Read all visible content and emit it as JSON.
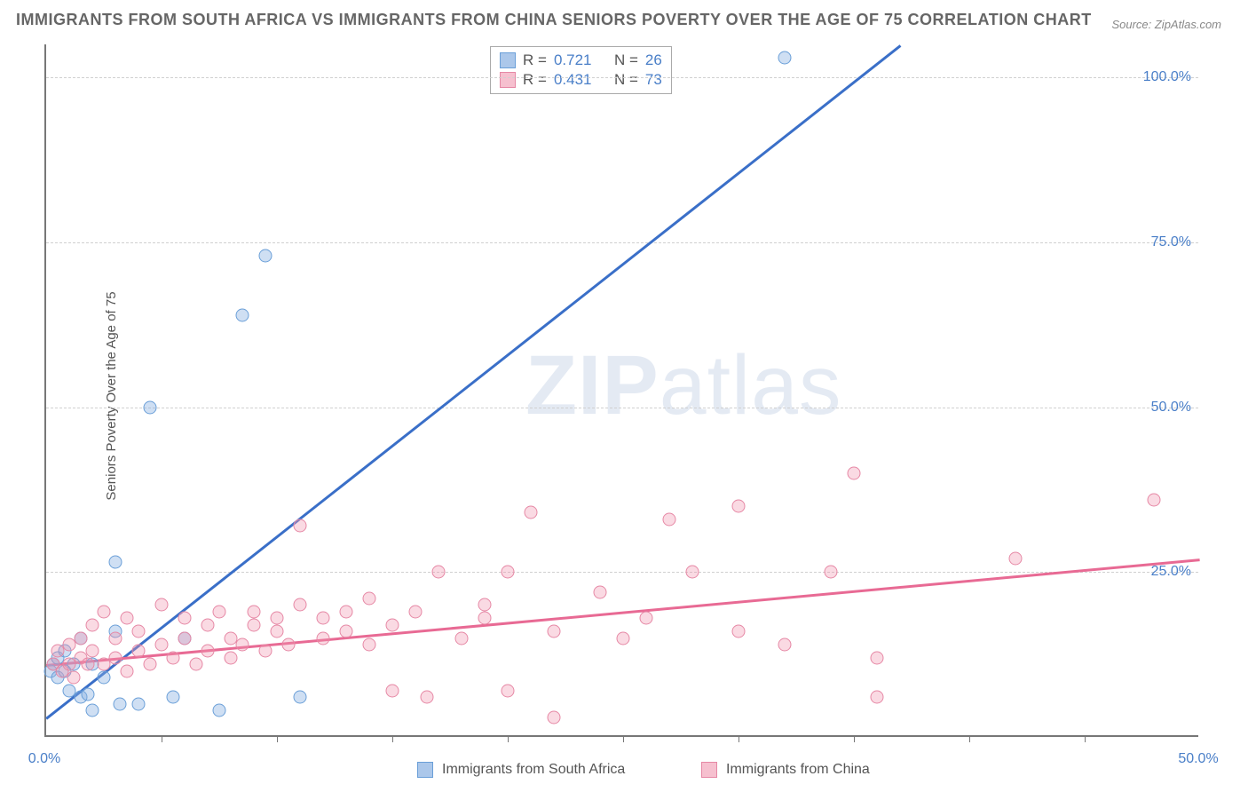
{
  "title": "IMMIGRANTS FROM SOUTH AFRICA VS IMMIGRANTS FROM CHINA SENIORS POVERTY OVER THE AGE OF 75 CORRELATION CHART",
  "source": "Source: ZipAtlas.com",
  "y_axis_label": "Seniors Poverty Over the Age of 75",
  "watermark_bold": "ZIP",
  "watermark_rest": "atlas",
  "chart": {
    "type": "scatter",
    "xlim": [
      0,
      50
    ],
    "ylim": [
      0,
      105
    ],
    "x_ticks": [
      0,
      25,
      50
    ],
    "x_tick_labels": [
      "0.0%",
      "",
      "50.0%"
    ],
    "y_ticks": [
      25,
      50,
      75,
      100
    ],
    "y_tick_labels": [
      "25.0%",
      "50.0%",
      "75.0%",
      "100.0%"
    ],
    "minor_x_ticks": [
      5,
      10,
      15,
      20,
      25,
      30,
      35,
      40,
      45
    ],
    "series": [
      {
        "name": "Immigrants from South Africa",
        "color_fill": "rgba(135,175,225,0.4)",
        "color_stroke": "#6a9fd8",
        "line_color": "#3a6fc8",
        "R": "0.721",
        "N": "26",
        "trend": {
          "x1": 0,
          "y1": 3,
          "x2": 37,
          "y2": 105
        },
        "points": [
          [
            0.2,
            10
          ],
          [
            0.3,
            11
          ],
          [
            0.5,
            9
          ],
          [
            0.5,
            12
          ],
          [
            0.8,
            10
          ],
          [
            0.8,
            13
          ],
          [
            1.0,
            7
          ],
          [
            1.2,
            11
          ],
          [
            1.5,
            6
          ],
          [
            1.5,
            15
          ],
          [
            1.8,
            6.5
          ],
          [
            2.0,
            4
          ],
          [
            2.0,
            11
          ],
          [
            2.5,
            9
          ],
          [
            3.0,
            16
          ],
          [
            3.0,
            26.5
          ],
          [
            3.2,
            5
          ],
          [
            4.0,
            5
          ],
          [
            4.5,
            50
          ],
          [
            5.5,
            6
          ],
          [
            6.0,
            15
          ],
          [
            7.5,
            4
          ],
          [
            8.5,
            64
          ],
          [
            9.5,
            73
          ],
          [
            11,
            6
          ],
          [
            32,
            103
          ]
        ]
      },
      {
        "name": "Immigrants from China",
        "color_fill": "rgba(240,150,175,0.35)",
        "color_stroke": "#e688a5",
        "line_color": "#e86a94",
        "R": "0.431",
        "N": "73",
        "trend": {
          "x1": 0,
          "y1": 11,
          "x2": 50,
          "y2": 27
        },
        "points": [
          [
            0.3,
            11
          ],
          [
            0.5,
            13
          ],
          [
            0.7,
            10
          ],
          [
            1.0,
            11
          ],
          [
            1.0,
            14
          ],
          [
            1.2,
            9
          ],
          [
            1.5,
            12
          ],
          [
            1.5,
            15
          ],
          [
            1.8,
            11
          ],
          [
            2.0,
            13
          ],
          [
            2.0,
            17
          ],
          [
            2.5,
            11
          ],
          [
            2.5,
            19
          ],
          [
            3.0,
            12
          ],
          [
            3.0,
            15
          ],
          [
            3.5,
            10
          ],
          [
            3.5,
            18
          ],
          [
            4.0,
            13
          ],
          [
            4.0,
            16
          ],
          [
            4.5,
            11
          ],
          [
            5.0,
            14
          ],
          [
            5.0,
            20
          ],
          [
            5.5,
            12
          ],
          [
            6.0,
            15
          ],
          [
            6.0,
            18
          ],
          [
            6.5,
            11
          ],
          [
            7.0,
            13
          ],
          [
            7.0,
            17
          ],
          [
            7.5,
            19
          ],
          [
            8.0,
            12
          ],
          [
            8.0,
            15
          ],
          [
            8.5,
            14
          ],
          [
            9.0,
            17
          ],
          [
            9.0,
            19
          ],
          [
            9.5,
            13
          ],
          [
            10,
            16
          ],
          [
            10,
            18
          ],
          [
            10.5,
            14
          ],
          [
            11,
            20
          ],
          [
            11,
            32
          ],
          [
            12,
            15
          ],
          [
            12,
            18
          ],
          [
            13,
            16
          ],
          [
            13,
            19
          ],
          [
            14,
            14
          ],
          [
            14,
            21
          ],
          [
            15,
            7
          ],
          [
            15,
            17
          ],
          [
            16,
            19
          ],
          [
            16.5,
            6
          ],
          [
            17,
            25
          ],
          [
            18,
            15
          ],
          [
            19,
            18
          ],
          [
            19,
            20
          ],
          [
            20,
            7
          ],
          [
            20,
            25
          ],
          [
            21,
            34
          ],
          [
            22,
            16
          ],
          [
            22,
            3
          ],
          [
            24,
            22
          ],
          [
            25,
            15
          ],
          [
            26,
            18
          ],
          [
            27,
            33
          ],
          [
            28,
            25
          ],
          [
            30,
            35
          ],
          [
            30,
            16
          ],
          [
            32,
            14
          ],
          [
            34,
            25
          ],
          [
            35,
            40
          ],
          [
            36,
            6
          ],
          [
            36,
            12
          ],
          [
            42,
            27
          ],
          [
            48,
            36
          ]
        ]
      }
    ],
    "legend_series1": "Immigrants from South Africa",
    "legend_series2": "Immigrants from China",
    "stat_label_R": "R =",
    "stat_label_N": "N ="
  }
}
